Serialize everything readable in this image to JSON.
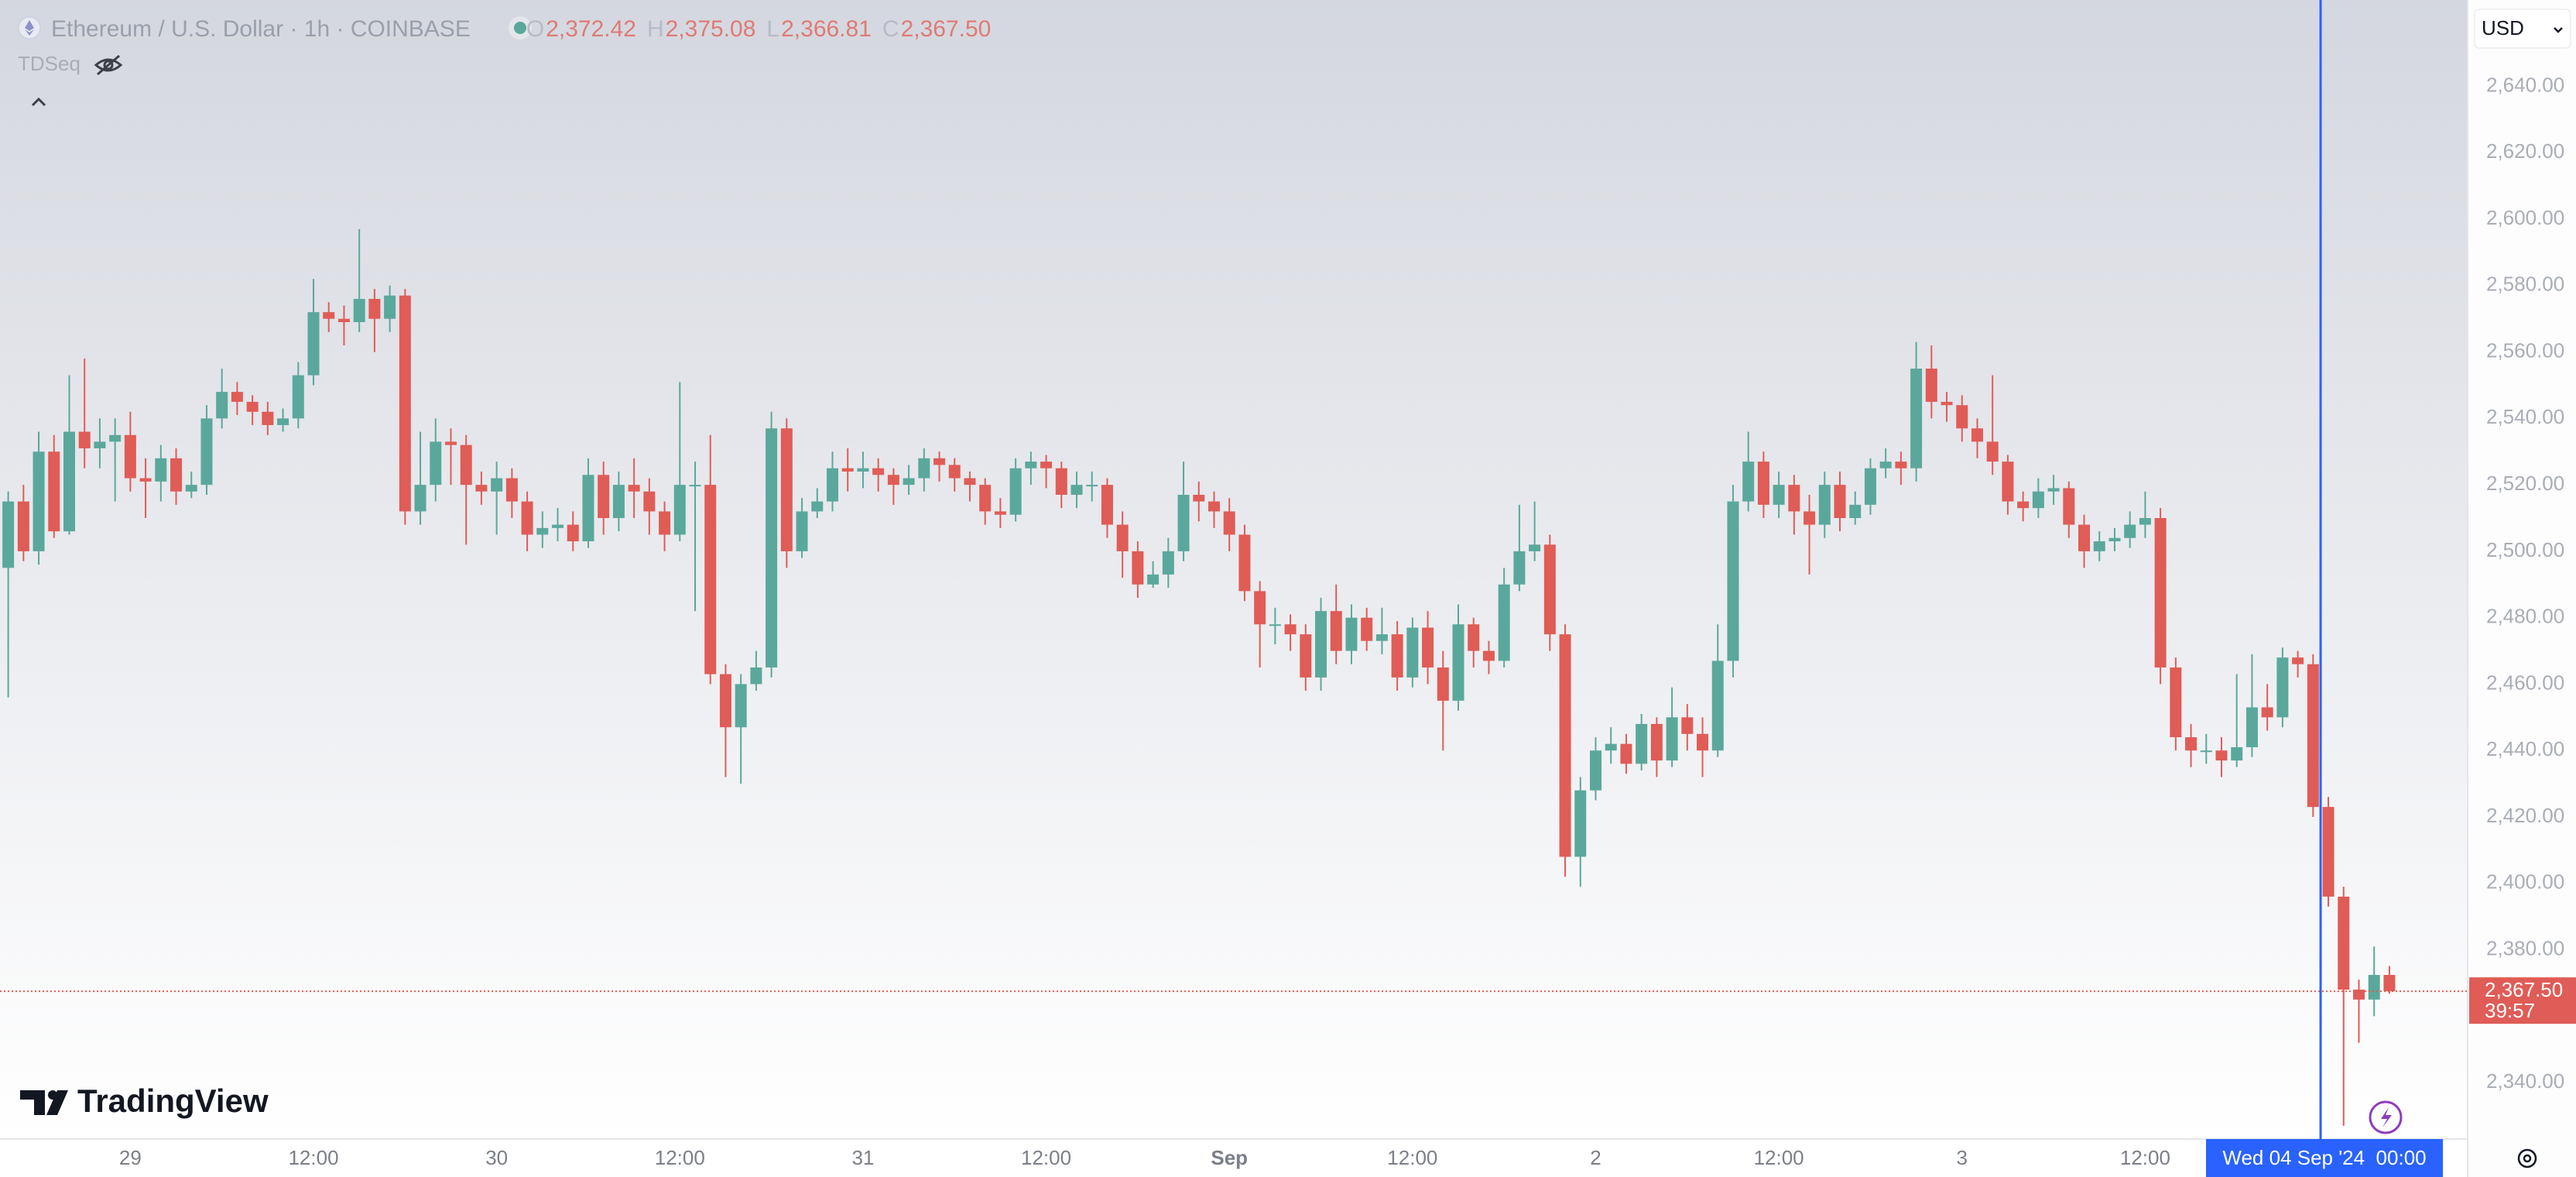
{
  "header": {
    "symbol": "Ethereum / U.S. Dollar · 1h · COINBASE",
    "open_label": "O",
    "open": "2,372.42",
    "high_label": "H",
    "high": "2,375.08",
    "low_label": "L",
    "low": "2,366.81",
    "close_label": "C",
    "close": "2,367.50",
    "indicator": "TDSeq"
  },
  "currency": "USD",
  "brand": "TradingView",
  "chart_data": {
    "type": "candlestick",
    "categories": [
      null,
      null,
      null,
      null,
      null,
      null,
      null,
      null,
      "29",
      null,
      null,
      null,
      null,
      null,
      null,
      null,
      null,
      null,
      null,
      null,
      "12:00",
      null,
      null,
      null,
      null,
      null,
      null,
      null,
      null,
      null,
      null,
      null,
      "30",
      null,
      null,
      null,
      null,
      null,
      null,
      null,
      null,
      null,
      null,
      null,
      "12:00",
      null,
      null,
      null,
      null,
      null,
      null,
      null,
      null,
      null,
      null,
      null,
      "31",
      null,
      null,
      null,
      null,
      null,
      null,
      null,
      null,
      null,
      null,
      null,
      "12:00",
      null,
      null,
      null,
      null,
      null,
      null,
      null,
      null,
      null,
      null,
      null,
      "Sep",
      null,
      null,
      null,
      null,
      null,
      null,
      null,
      null,
      null,
      null,
      null,
      "12:00",
      null,
      null,
      null,
      null,
      null,
      null,
      null,
      null,
      null,
      null,
      null,
      "2",
      null,
      null,
      null,
      null,
      null,
      null,
      null,
      null,
      null,
      null,
      null,
      "12:00",
      null,
      null,
      null,
      null,
      null,
      null,
      null,
      null,
      null,
      null,
      null,
      "3",
      null,
      null,
      null,
      null,
      null,
      null,
      null,
      null,
      null,
      null,
      null,
      "12:00",
      null,
      null,
      null,
      null,
      null,
      null,
      null,
      null,
      null,
      null,
      null,
      null,
      null,
      null,
      null,
      null
    ],
    "open": [
      2495,
      2515,
      2500,
      2530,
      2506,
      2536,
      2531,
      2533,
      2535,
      2522,
      2521,
      2528,
      2518,
      2520,
      2540,
      2548,
      2545,
      2542,
      2538,
      2540,
      2553,
      2572,
      2570,
      2569,
      2576,
      2570,
      2577,
      2512,
      2520,
      2533,
      2532,
      2520,
      2518,
      2522,
      2515,
      2505,
      2507,
      2508,
      2503,
      2523,
      2510,
      2520,
      2518,
      2512,
      2505,
      2520,
      2520,
      2463,
      2447,
      2460,
      2465,
      2537,
      2500,
      2512,
      2515,
      2525,
      2524,
      2525,
      2523,
      2520,
      2522,
      2528,
      2526,
      2522,
      2520,
      2512,
      2511,
      2525,
      2527,
      2525,
      2517,
      2520,
      2520,
      2508,
      2500,
      2490,
      2493,
      2500,
      2517,
      2515,
      2512,
      2505,
      2488,
      2478,
      2478,
      2475,
      2462,
      2482,
      2470,
      2480,
      2473,
      2475,
      2462,
      2477,
      2465,
      2455,
      2478,
      2470,
      2467,
      2490,
      2500,
      2502,
      2475,
      2408,
      2428,
      2440,
      2442,
      2436,
      2448,
      2437,
      2450,
      2445,
      2440,
      2467,
      2515,
      2527,
      2514,
      2520,
      2512,
      2508,
      2520,
      2510,
      2514,
      2525,
      2527,
      2525,
      2555,
      2545,
      2544,
      2537,
      2533,
      2527,
      2515,
      2513,
      2518,
      2519,
      2508,
      2500,
      2503,
      2504,
      2508,
      2510,
      2465,
      2444,
      2440,
      2440,
      2437,
      2441,
      2453,
      2450,
      2468,
      2466,
      2423,
      2396,
      2368,
      2365,
      2372.42
    ],
    "high": [
      2518,
      2520,
      2536,
      2535,
      2553,
      2558,
      2540,
      2540,
      2542,
      2528,
      2532,
      2531,
      2524,
      2544,
      2555,
      2551,
      2547,
      2545,
      2543,
      2557,
      2582,
      2575,
      2574,
      2597,
      2579,
      2580,
      2579,
      2536,
      2540,
      2537,
      2535,
      2524,
      2527,
      2525,
      2518,
      2512,
      2513,
      2512,
      2528,
      2527,
      2524,
      2528,
      2522,
      2515,
      2551,
      2527,
      2535,
      2466,
      2463,
      2470,
      2542,
      2540,
      2516,
      2519,
      2530,
      2531,
      2530,
      2528,
      2525,
      2526,
      2531,
      2530,
      2528,
      2524,
      2522,
      2516,
      2528,
      2530,
      2529,
      2527,
      2524,
      2524,
      2522,
      2512,
      2503,
      2497,
      2504,
      2527,
      2521,
      2518,
      2516,
      2508,
      2491,
      2483,
      2481,
      2478,
      2486,
      2490,
      2484,
      2483,
      2483,
      2479,
      2480,
      2482,
      2470,
      2484,
      2480,
      2473,
      2495,
      2514,
      2515,
      2505,
      2478,
      2432,
      2444,
      2447,
      2445,
      2451,
      2450,
      2459,
      2454,
      2450,
      2478,
      2520,
      2536,
      2530,
      2524,
      2523,
      2517,
      2524,
      2524,
      2518,
      2528,
      2531,
      2530,
      2563,
      2562,
      2548,
      2547,
      2540,
      2553,
      2529,
      2518,
      2522,
      2523,
      2521,
      2511,
      2506,
      2507,
      2512,
      2518,
      2513,
      2468,
      2448,
      2445,
      2444,
      2463,
      2469,
      2460,
      2471,
      2470,
      2469,
      2426,
      2399,
      2371,
      2381,
      2375.08
    ],
    "low": [
      2456,
      2497,
      2496,
      2504,
      2505,
      2525,
      2525,
      2515,
      2518,
      2510,
      2515,
      2514,
      2516,
      2517,
      2537,
      2541,
      2538,
      2535,
      2536,
      2537,
      2550,
      2566,
      2562,
      2566,
      2560,
      2566,
      2508,
      2508,
      2515,
      2520,
      2502,
      2514,
      2505,
      2510,
      2500,
      2501,
      2503,
      2500,
      2501,
      2505,
      2506,
      2510,
      2505,
      2500,
      2503,
      2482,
      2460,
      2432,
      2430,
      2458,
      2462,
      2495,
      2498,
      2510,
      2512,
      2518,
      2519,
      2518,
      2514,
      2517,
      2518,
      2521,
      2518,
      2515,
      2508,
      2507,
      2509,
      2520,
      2519,
      2513,
      2513,
      2515,
      2504,
      2492,
      2486,
      2489,
      2489,
      2497,
      2509,
      2507,
      2500,
      2485,
      2465,
      2472,
      2470,
      2458,
      2458,
      2466,
      2466,
      2470,
      2469,
      2458,
      2459,
      2460,
      2440,
      2452,
      2465,
      2463,
      2465,
      2488,
      2497,
      2470,
      2402,
      2399,
      2425,
      2436,
      2433,
      2434,
      2432,
      2435,
      2440,
      2432,
      2438,
      2462,
      2512,
      2510,
      2510,
      2505,
      2493,
      2504,
      2506,
      2508,
      2511,
      2522,
      2520,
      2521,
      2540,
      2539,
      2533,
      2528,
      2523,
      2511,
      2509,
      2510,
      2514,
      2504,
      2495,
      2497,
      2500,
      2501,
      2504,
      2460,
      2440,
      2435,
      2436,
      2432,
      2435,
      2438,
      2446,
      2447,
      2462,
      2420,
      2393,
      2327,
      2352,
      2360,
      2366.81
    ],
    "close": [
      2515,
      2500,
      2530,
      2506,
      2536,
      2531,
      2533,
      2535,
      2522,
      2521,
      2528,
      2518,
      2520,
      2540,
      2548,
      2545,
      2542,
      2538,
      2540,
      2553,
      2572,
      2570,
      2569,
      2576,
      2570,
      2577,
      2512,
      2520,
      2533,
      2532,
      2520,
      2518,
      2522,
      2515,
      2505,
      2507,
      2508,
      2503,
      2523,
      2510,
      2520,
      2518,
      2512,
      2505,
      2520,
      2520,
      2463,
      2447,
      2460,
      2465,
      2537,
      2500,
      2512,
      2515,
      2525,
      2524,
      2525,
      2523,
      2520,
      2522,
      2528,
      2526,
      2522,
      2520,
      2512,
      2511,
      2525,
      2527,
      2525,
      2517,
      2520,
      2520,
      2508,
      2500,
      2490,
      2493,
      2500,
      2517,
      2515,
      2512,
      2505,
      2488,
      2478,
      2478,
      2475,
      2462,
      2482,
      2470,
      2480,
      2473,
      2475,
      2462,
      2477,
      2465,
      2455,
      2478,
      2470,
      2467,
      2490,
      2500,
      2502,
      2475,
      2408,
      2428,
      2440,
      2442,
      2436,
      2448,
      2437,
      2450,
      2445,
      2440,
      2467,
      2515,
      2527,
      2514,
      2520,
      2512,
      2508,
      2520,
      2510,
      2514,
      2525,
      2527,
      2525,
      2555,
      2545,
      2544,
      2537,
      2533,
      2527,
      2515,
      2513,
      2518,
      2519,
      2508,
      2500,
      2503,
      2504,
      2508,
      2510,
      2465,
      2444,
      2440,
      2440,
      2437,
      2441,
      2453,
      2450,
      2468,
      2466,
      2423,
      2396,
      2368,
      2365,
      2372.42,
      2367.5
    ],
    "up_color": "#5aa89b",
    "down_color": "#e05c56",
    "ylim": [
      2323,
      2666
    ],
    "yticks": [
      {
        "value": 2340,
        "label": "2,340.00"
      },
      {
        "value": 2360,
        "label": "2,360.00"
      },
      {
        "value": 2380,
        "label": "2,380.00"
      },
      {
        "value": 2400,
        "label": "2,400.00"
      },
      {
        "value": 2420,
        "label": "2,420.00"
      },
      {
        "value": 2440,
        "label": "2,440.00"
      },
      {
        "value": 2460,
        "label": "2,460.00"
      },
      {
        "value": 2480,
        "label": "2,480.00"
      },
      {
        "value": 2500,
        "label": "2,500.00"
      },
      {
        "value": 2520,
        "label": "2,520.00"
      },
      {
        "value": 2540,
        "label": "2,540.00"
      },
      {
        "value": 2560,
        "label": "2,560.00"
      },
      {
        "value": 2580,
        "label": "2,580.00"
      },
      {
        "value": 2600,
        "label": "2,600.00"
      },
      {
        "value": 2620,
        "label": "2,620.00"
      },
      {
        "value": 2640,
        "label": "2,640.00"
      }
    ],
    "grid": false,
    "last_price": {
      "value": 2367.5,
      "label": "2,367.50"
    },
    "countdown": "39:57",
    "crosshair_label": "Wed 04 Sep '24  00:00"
  }
}
